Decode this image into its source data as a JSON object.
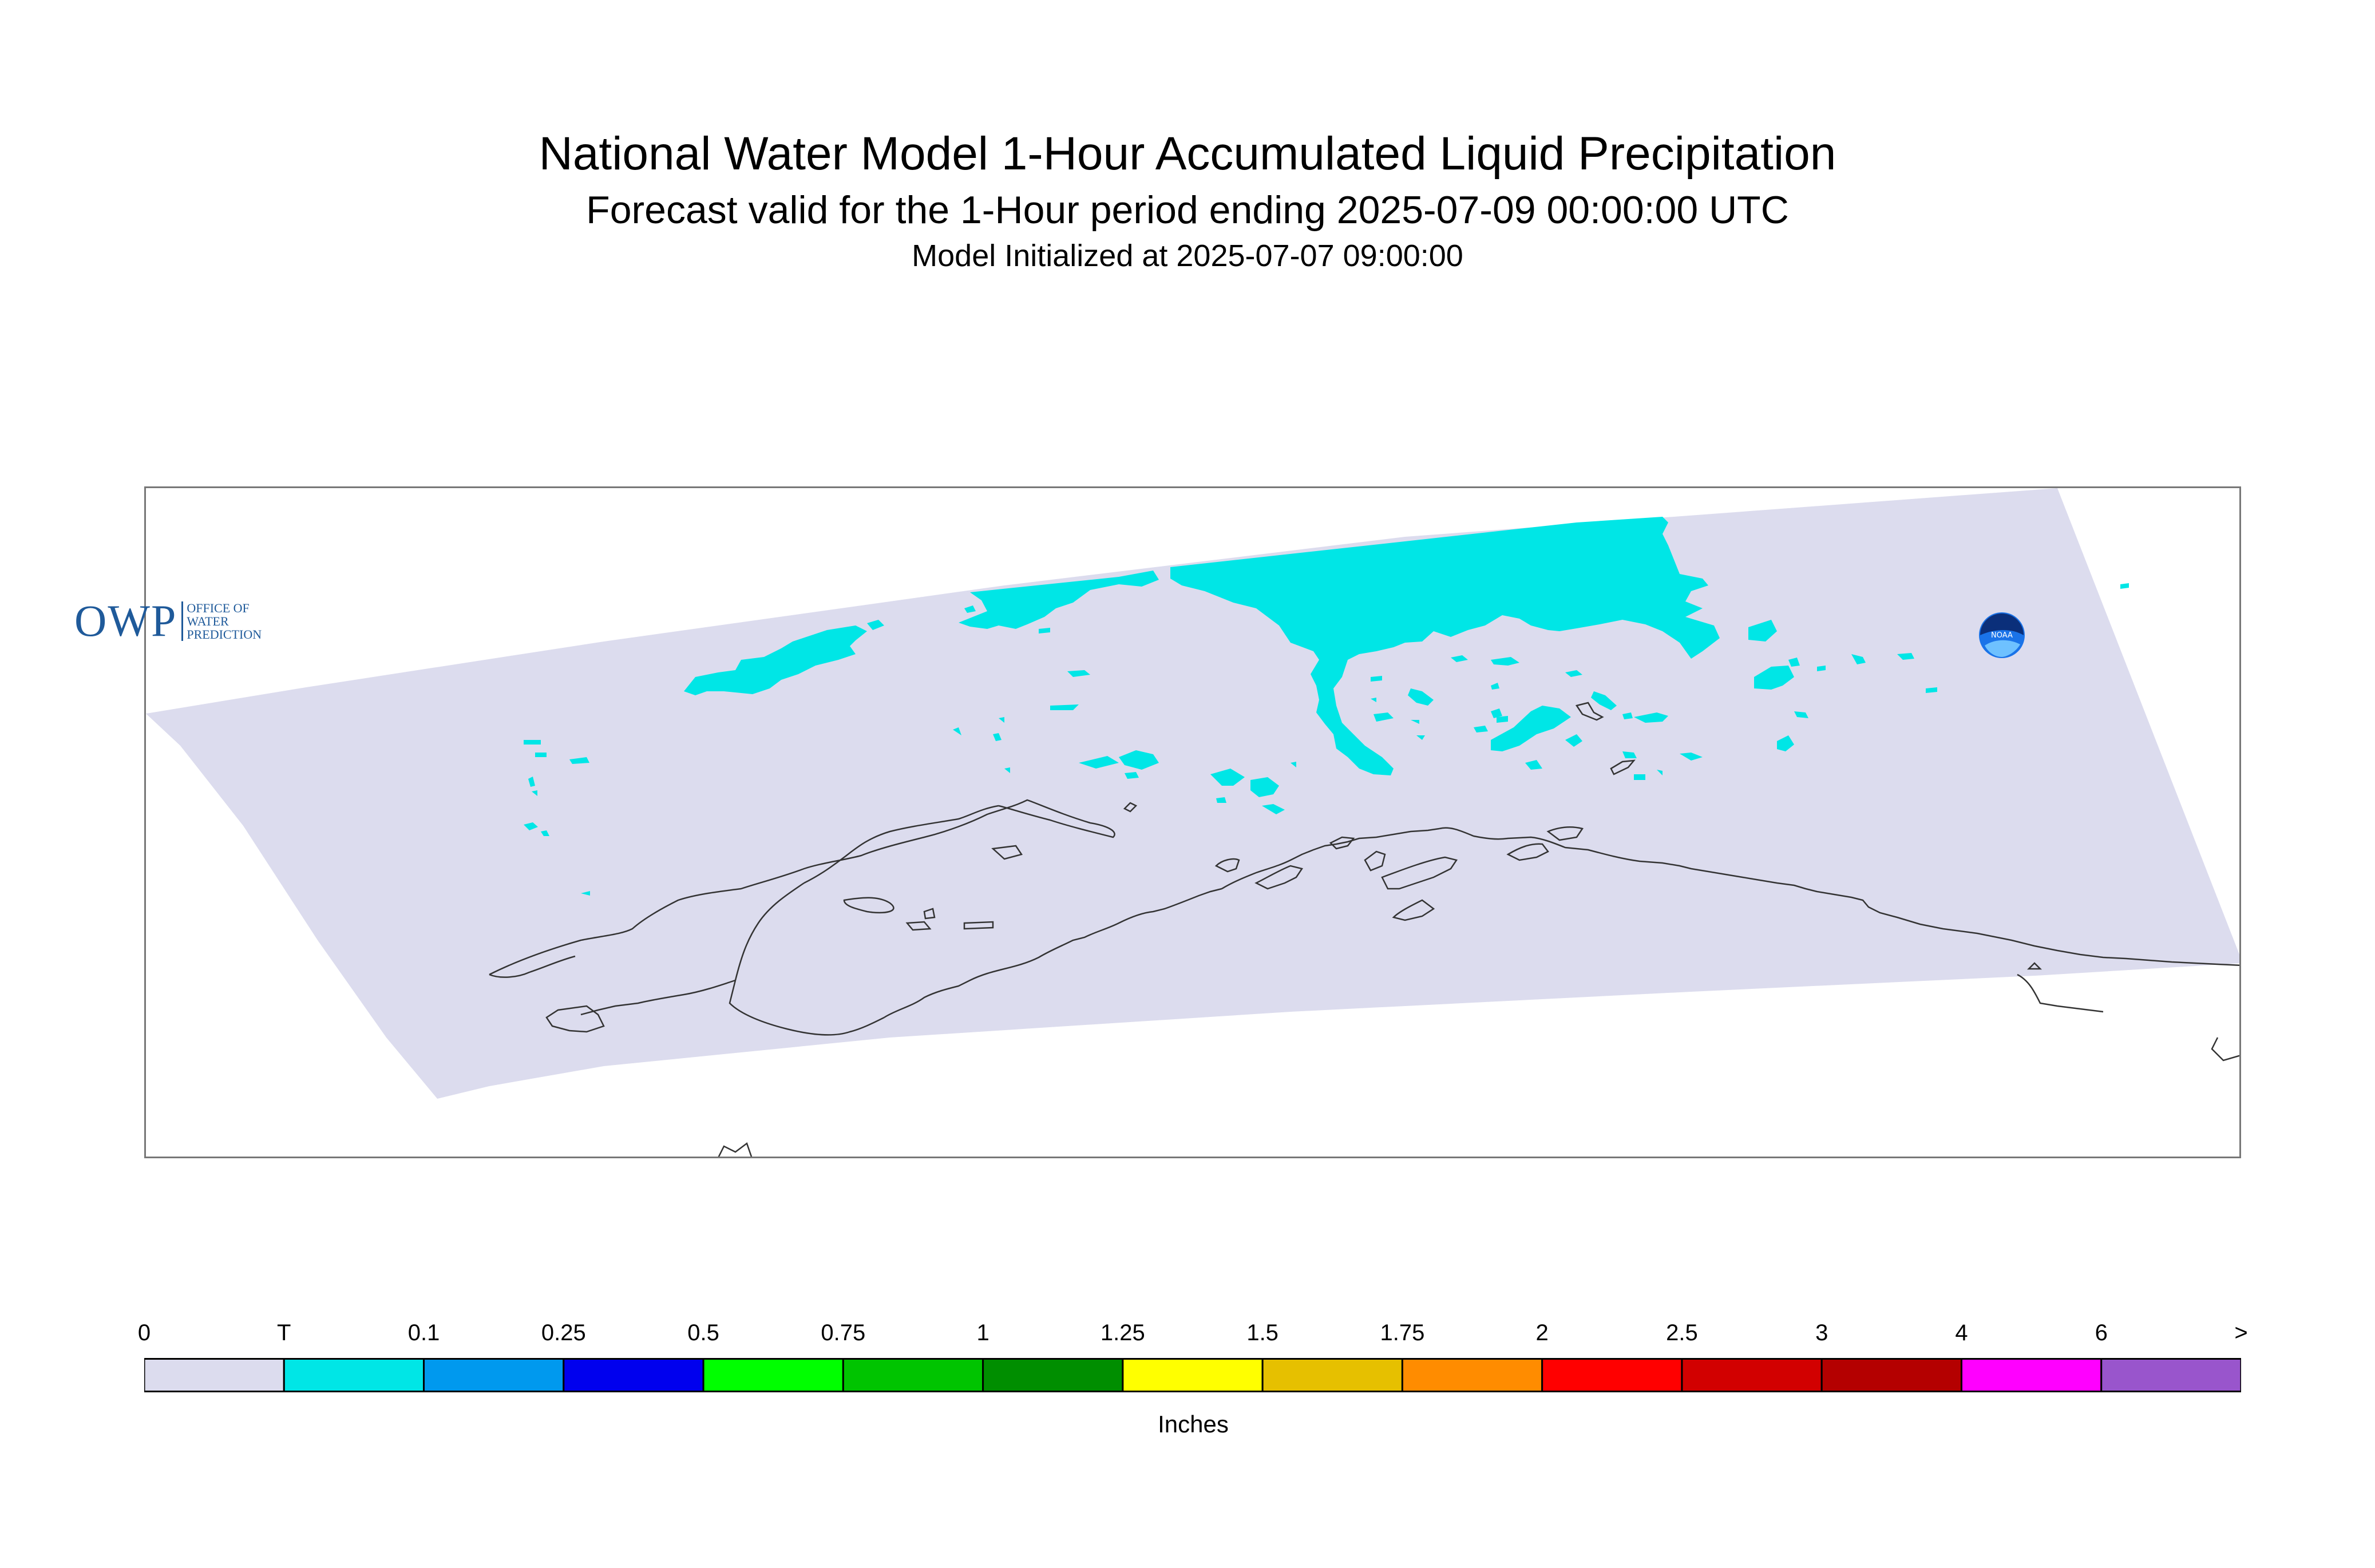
{
  "title": "National Water Model 1-Hour Accumulated Liquid Precipitation",
  "subtitle": "Forecast valid for the 1-Hour period ending 2025-07-09 00:00:00 UTC",
  "init_line": "Model Initialized at 2025-07-07 09:00:00",
  "logos": {
    "owp_mark": "OWP",
    "owp_text": [
      "OFFICE OF",
      "WATER",
      "PREDICTION"
    ],
    "noaa_text": "NOAA"
  },
  "colors": {
    "domain": "#dcdcee",
    "precip_trace": "#00e6e6",
    "coastline": "#333333",
    "border": "#777777"
  },
  "legend": {
    "units": "Inches",
    "tick_labels": [
      "0",
      "T",
      "0.1",
      "0.25",
      "0.5",
      "0.75",
      "1",
      "1.25",
      "1.5",
      "1.75",
      "2",
      "2.5",
      "3",
      "4",
      "6",
      ">"
    ],
    "bins": [
      {
        "from": "0",
        "to": "T",
        "color": "#dcdcee"
      },
      {
        "from": "T",
        "to": "0.1",
        "color": "#00e6e6"
      },
      {
        "from": "0.1",
        "to": "0.25",
        "color": "#0099ee"
      },
      {
        "from": "0.25",
        "to": "0.5",
        "color": "#0000ee"
      },
      {
        "from": "0.5",
        "to": "0.75",
        "color": "#00ff00"
      },
      {
        "from": "0.75",
        "to": "1",
        "color": "#00c400"
      },
      {
        "from": "1",
        "to": "1.25",
        "color": "#008e00"
      },
      {
        "from": "1.25",
        "to": "1.5",
        "color": "#ffff00"
      },
      {
        "from": "1.5",
        "to": "1.75",
        "color": "#e6c000"
      },
      {
        "from": "1.75",
        "to": "2",
        "color": "#ff8c00"
      },
      {
        "from": "2",
        "to": "2.5",
        "color": "#ff0000"
      },
      {
        "from": "2.5",
        "to": "3",
        "color": "#d20000"
      },
      {
        "from": "3",
        "to": "4",
        "color": "#b40000"
      },
      {
        "from": "4",
        "to": "6",
        "color": "#ff00ff"
      },
      {
        "from": "6",
        "to": ">",
        "color": "#9955cc"
      }
    ]
  }
}
